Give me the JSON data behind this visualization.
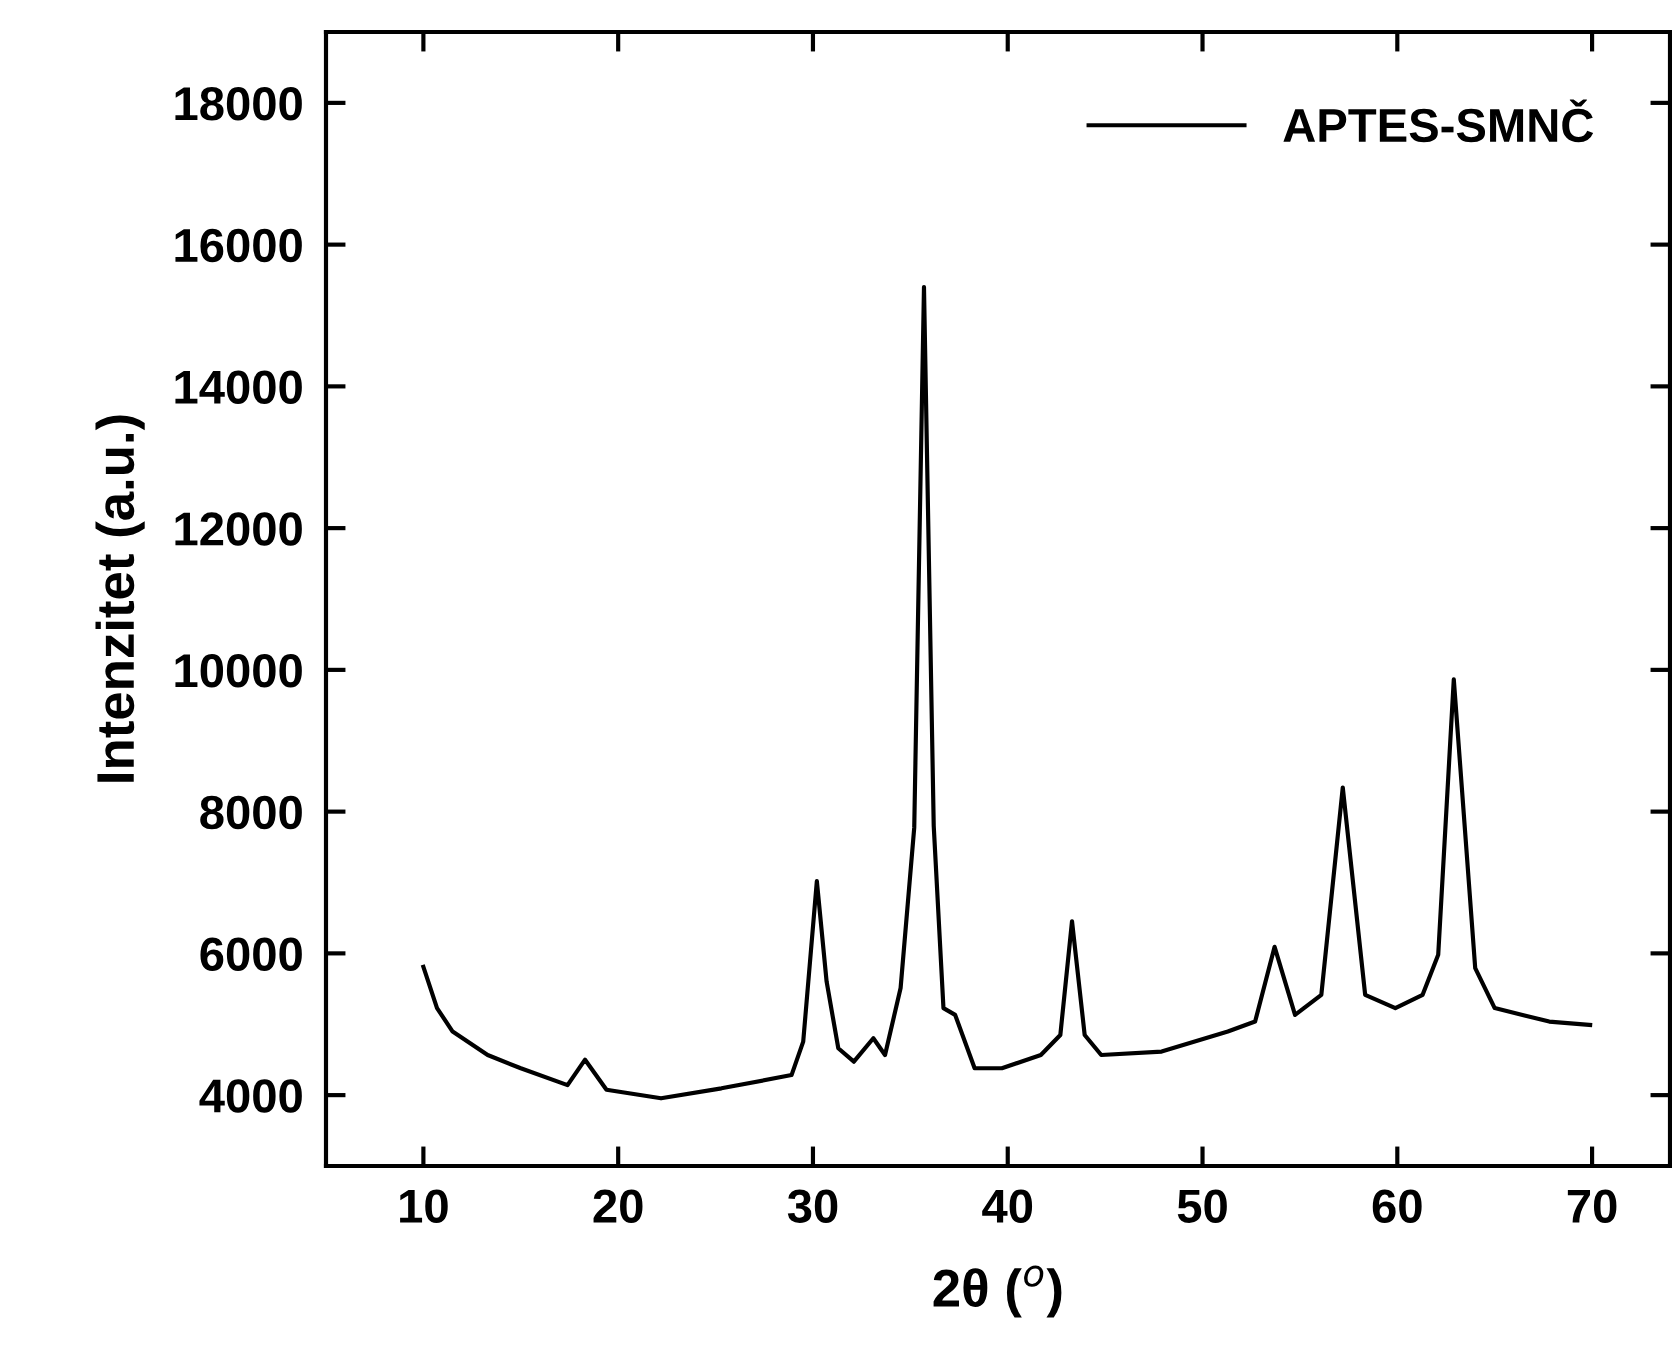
{
  "chart_data": {
    "type": "line",
    "xlabel": "2θ ($^{o}$)",
    "ylabel": "Intenzitet (a.u.)",
    "xlim": [
      5,
      74
    ],
    "ylim": [
      3000,
      19000
    ],
    "xticks": [
      10,
      20,
      30,
      40,
      50,
      60,
      70
    ],
    "yticks": [
      4000,
      6000,
      8000,
      10000,
      12000,
      14000,
      16000,
      18000
    ],
    "grid": false,
    "legend": "top right",
    "marker": "none",
    "line_style": "solid",
    "series": [
      {
        "name": "APTES-SMNČ",
        "color": "#000000",
        "x": [
          10.0,
          10.7,
          11.5,
          13.3,
          15.0,
          17.4,
          18.3,
          19.4,
          22.2,
          25.3,
          28.9,
          29.5,
          30.2,
          30.7,
          31.3,
          32.1,
          33.1,
          33.7,
          34.5,
          35.2,
          35.7,
          36.2,
          36.7,
          37.3,
          38.3,
          39.7,
          41.7,
          42.7,
          43.3,
          43.95,
          44.8,
          47.9,
          51.3,
          52.7,
          53.7,
          54.75,
          56.1,
          57.2,
          58.35,
          59.9,
          61.3,
          62.1,
          62.9,
          64.0,
          65.0,
          67.8,
          69.9
        ],
        "values": [
          5810,
          5228,
          4897,
          4566,
          4379,
          4141,
          4500,
          4076,
          3955,
          4096,
          4283,
          4755,
          7019,
          5604,
          4662,
          4472,
          4803,
          4566,
          5511,
          7774,
          15400,
          7800,
          5228,
          5132,
          4379,
          4379,
          4566,
          4849,
          6453,
          4849,
          4566,
          4614,
          4897,
          5038,
          6093,
          5132,
          5415,
          8340,
          5415,
          5228,
          5415,
          5980,
          9867,
          5793,
          5228,
          5038,
          4990
        ]
      }
    ]
  }
}
